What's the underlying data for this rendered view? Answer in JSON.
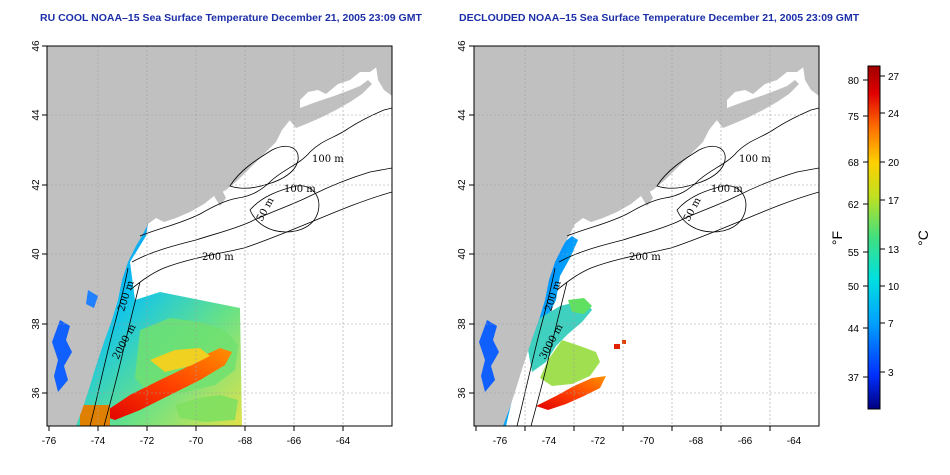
{
  "panels": [
    {
      "title": "RU COOL NOAA–15 Sea Surface Temperature December 21, 2005 23:09 GMT",
      "x_ticks": [
        "-76",
        "-74",
        "-72",
        "-70",
        "-68",
        "-66",
        "-64"
      ],
      "y_ticks": [
        "36",
        "38",
        "40",
        "42",
        "44",
        "46"
      ],
      "contour_labels": [
        "100 m",
        "100 m",
        "50 m",
        "200 m",
        "200 m",
        "2000 m"
      ]
    },
    {
      "title": "DECLOUDED NOAA–15 Sea Surface Temperature December 21, 2005 23:09 GMT",
      "x_ticks": [
        "-76",
        "-74",
        "-72",
        "-70",
        "-68",
        "-66",
        "-64"
      ],
      "y_ticks": [
        "36",
        "38",
        "40",
        "42",
        "44",
        "46"
      ],
      "contour_labels": [
        "100 m",
        "100 m",
        "50 m",
        "200 m",
        "200 m",
        "3000 m"
      ]
    }
  ],
  "colorbar": {
    "fahrenheit_unit": "°F",
    "celsius_unit": "°C",
    "fahrenheit_ticks": [
      "80",
      "75",
      "68",
      "62",
      "55",
      "50",
      "44",
      "37"
    ],
    "celsius_ticks": [
      "27",
      "24",
      "20",
      "17",
      "13",
      "10",
      "7",
      "3"
    ],
    "colors": [
      "#000080",
      "#0030ff",
      "#00a0ff",
      "#00e0e0",
      "#40e080",
      "#c0e020",
      "#ffd000",
      "#ff7000",
      "#e00000",
      "#a00000"
    ]
  },
  "map": {
    "land_color": "#c0c0c0",
    "grid_color": "#a0a0a0"
  }
}
